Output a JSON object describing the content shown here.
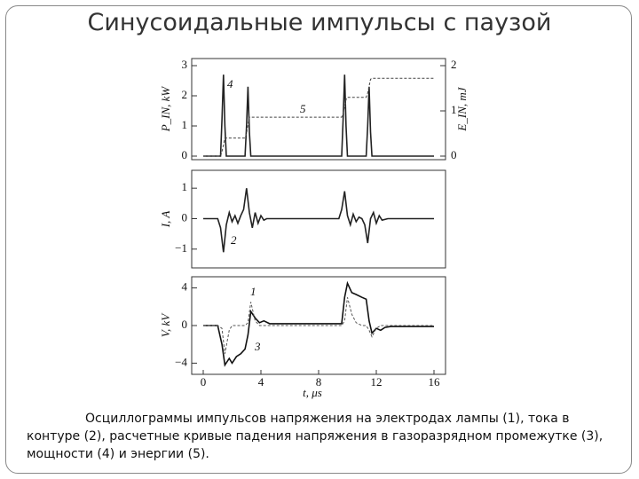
{
  "slide": {
    "title": "Синусоидальные импульсы с паузой",
    "caption": "Осциллограммы импульсов напряжения на электродах лампы (1), тока в контуре (2), расчетные кривые падения напряжения в газоразрядном промежутке (3), мощности (4) и энергии (5)."
  },
  "chart_data": [
    {
      "type": "line",
      "ylabel": "P_IN, kW",
      "y2label": "E_IN, mJ",
      "x": [
        0,
        1.2,
        1.3,
        1.4,
        1.5,
        1.6,
        2.9,
        3.0,
        3.1,
        3.2,
        3.3,
        9.6,
        9.7,
        9.8,
        9.9,
        10.0,
        11.3,
        11.4,
        11.5,
        11.6,
        11.7,
        16
      ],
      "series": [
        {
          "name": "4",
          "color": "#222222",
          "dash": false,
          "values": [
            0,
            0,
            1.2,
            2.7,
            1.0,
            0,
            0,
            1.0,
            2.3,
            0.8,
            0,
            0,
            1.2,
            2.7,
            1.0,
            0,
            0,
            1.0,
            2.3,
            0.8,
            0,
            0
          ]
        },
        {
          "name": "5",
          "color": "#444444",
          "dash": true,
          "axis": "y2",
          "values": [
            0,
            0,
            0.1,
            0.25,
            0.4,
            0.4,
            0.4,
            0.5,
            0.7,
            0.86,
            0.86,
            0.86,
            0.95,
            1.1,
            1.25,
            1.3,
            1.3,
            1.4,
            1.55,
            1.7,
            1.72,
            1.72
          ]
        }
      ],
      "xlim": [
        0,
        16
      ],
      "ylim": [
        0,
        3
      ],
      "yticks": [
        0,
        1,
        2,
        3
      ],
      "y2lim": [
        0,
        2
      ],
      "y2ticks": [
        0,
        1,
        2
      ]
    },
    {
      "type": "line",
      "ylabel": "I, A",
      "x": [
        0,
        1.0,
        1.2,
        1.4,
        1.6,
        1.8,
        2.0,
        2.2,
        2.4,
        2.6,
        2.8,
        3.0,
        3.2,
        3.4,
        3.6,
        3.8,
        4.0,
        4.2,
        4.4,
        4.8,
        9.4,
        9.6,
        9.8,
        10.0,
        10.2,
        10.4,
        10.6,
        10.8,
        11.0,
        11.2,
        11.4,
        11.6,
        11.8,
        12.0,
        12.2,
        12.4,
        12.8,
        16
      ],
      "series": [
        {
          "name": "2",
          "color": "#222222",
          "dash": false,
          "values": [
            0,
            0,
            -0.3,
            -1.1,
            -0.2,
            0.2,
            -0.1,
            0.1,
            -0.15,
            0.1,
            0.3,
            1.0,
            0.2,
            -0.3,
            0.2,
            -0.15,
            0.1,
            -0.05,
            0,
            0,
            0,
            0.3,
            0.9,
            0.1,
            -0.2,
            0.15,
            -0.1,
            0.05,
            0,
            -0.2,
            -0.8,
            0,
            0.2,
            -0.15,
            0.1,
            -0.05,
            0,
            0
          ]
        }
      ],
      "xlim": [
        0,
        16
      ],
      "ylim": [
        -1.5,
        1.5
      ],
      "yticks": [
        {
          "value": -1,
          "label": "−1"
        },
        0,
        1
      ]
    },
    {
      "type": "line",
      "ylabel": "V, kV",
      "xlabel": "t, μs",
      "x": [
        0,
        1.0,
        1.3,
        1.5,
        1.8,
        2.0,
        2.3,
        2.6,
        2.9,
        3.1,
        3.3,
        3.6,
        3.9,
        4.2,
        4.6,
        5,
        9.6,
        9.8,
        10.0,
        10.3,
        10.6,
        11.0,
        11.3,
        11.5,
        11.7,
        12.0,
        12.3,
        12.6,
        13,
        16
      ],
      "series": [
        {
          "name": "1",
          "color": "#111111",
          "dash": false,
          "values": [
            0,
            0,
            -2,
            -4.2,
            -3.5,
            -4,
            -3.3,
            -3,
            -2.5,
            -1,
            1.5,
            0.8,
            0.3,
            0.5,
            0.2,
            0.2,
            0.2,
            3,
            4.5,
            3.5,
            3.3,
            3,
            2.8,
            0.5,
            -0.8,
            -0.3,
            -0.5,
            -0.2,
            -0.1,
            -0.1
          ]
        },
        {
          "name": "3",
          "color": "#555555",
          "dash": true,
          "values": [
            0,
            0,
            -0.3,
            -3,
            -0.5,
            0,
            0,
            0,
            0,
            0.3,
            2.5,
            0.5,
            0,
            0,
            0,
            0,
            0,
            0.5,
            3,
            1.2,
            0.3,
            0,
            0,
            -0.5,
            -1.2,
            -0.3,
            0,
            0,
            0,
            0
          ]
        }
      ],
      "xlim": [
        0,
        16
      ],
      "ylim": [
        -5,
        5
      ],
      "yticks": [
        {
          "value": -4,
          "label": "−4"
        },
        0,
        4
      ],
      "xticks": [
        0,
        4,
        8,
        12,
        16
      ]
    }
  ]
}
